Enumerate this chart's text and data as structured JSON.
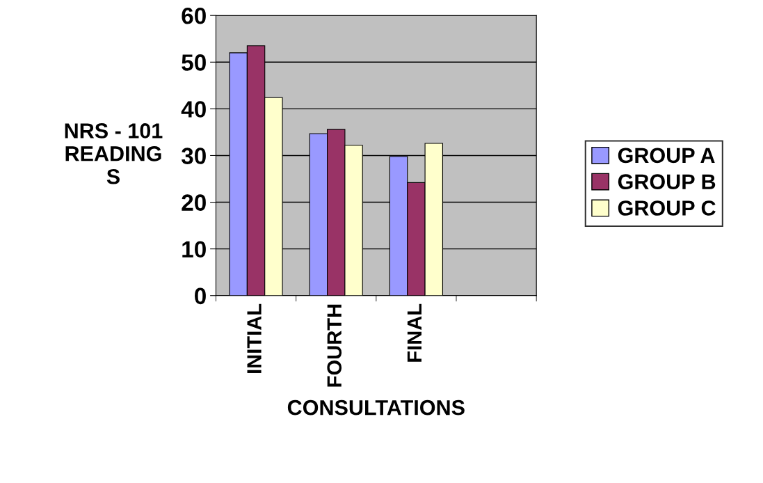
{
  "chart_data": {
    "type": "bar",
    "xlabel": "CONSULTATIONS",
    "ylabel": "NRS - 101\nREADING\nS",
    "categories": [
      "INITIAL",
      "FOURTH",
      "FINAL",
      null
    ],
    "series": [
      {
        "name": "GROUP A",
        "color": "#9999ff",
        "values": [
          52,
          34.7,
          29.8,
          null
        ]
      },
      {
        "name": "GROUP B",
        "color": "#993366",
        "values": [
          53.5,
          35.6,
          24.2,
          null
        ]
      },
      {
        "name": "GROUP C",
        "color": "#ffffcc",
        "values": [
          42.4,
          32.2,
          32.6,
          null
        ]
      }
    ],
    "ylim": [
      0,
      60
    ],
    "yticks": [
      0,
      10,
      20,
      30,
      40,
      50,
      60
    ],
    "grid": "y",
    "legend": "right"
  }
}
